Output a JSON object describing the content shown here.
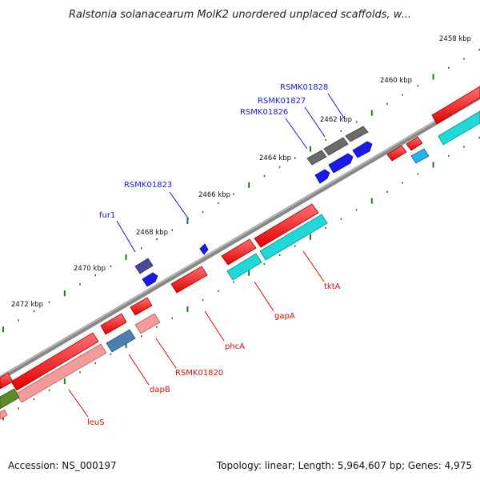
{
  "title": "Ralstonia solanacearum MolK2 unordered unplaced scaffolds, w...",
  "footer": {
    "accession": "Accession: NS_000197",
    "summary": "Topology: linear; Length: 5,964,607 bp; Genes: 4,975"
  },
  "ticks": [
    "2458 kbp",
    "2460 kbp",
    "2462 kbp",
    "2464 kbp",
    "2466 kbp",
    "2468 kbp",
    "2470 kbp",
    "2472 kbp"
  ],
  "genes_top": [
    "RSMK01828",
    "RSMK01827",
    "RSMK01826",
    "RSMK01823",
    "fur1"
  ],
  "genes_bottom": [
    "tktA",
    "gapA",
    "phcA",
    "RSMK01820",
    "dapB",
    "leuS"
  ],
  "colors": {
    "gene_red": "#ff1a1a",
    "gene_pink": "#f49a9a",
    "gene_cyan": "#20d8d8",
    "gene_lightblue": "#2ab0e8",
    "gene_steel": "#4a80b0",
    "gene_blue": "#1a1aee",
    "gene_navy": "#4a4a9a",
    "gene_gray": "#666666",
    "gene_olive": "#5a8c2a",
    "backbone": "#7a7a7a",
    "tick_mark": "#1d7a1d"
  }
}
